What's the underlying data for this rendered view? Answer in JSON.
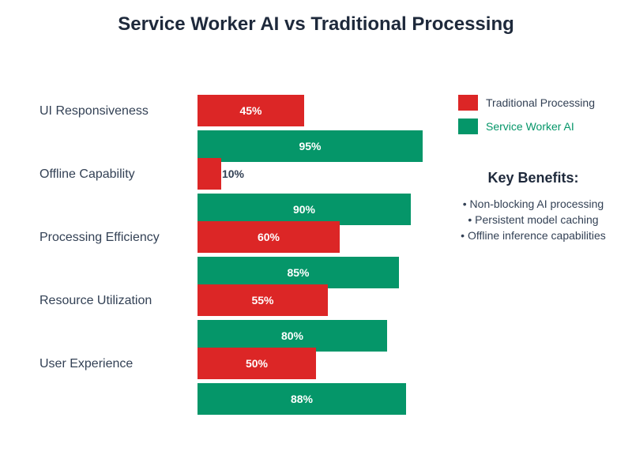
{
  "chart_data": {
    "type": "bar",
    "orientation": "horizontal",
    "title": "Service Worker AI vs Traditional Processing",
    "categories": [
      "UI Responsiveness",
      "Offline Capability",
      "Processing Efficiency",
      "Resource Utilization",
      "User Experience"
    ],
    "series": [
      {
        "name": "Traditional Processing",
        "color": "#dc2626",
        "values": [
          45,
          10,
          60,
          55,
          50
        ]
      },
      {
        "name": "Service Worker AI",
        "color": "#059669",
        "values": [
          95,
          90,
          85,
          80,
          88
        ]
      }
    ],
    "xlim": [
      0,
      100
    ],
    "value_suffix": "%",
    "legend_position": "top-right"
  },
  "benefits": {
    "title": "Key Benefits:",
    "items": [
      "• Non-blocking AI processing",
      "• Persistent model caching",
      "• Offline inference capabilities"
    ]
  }
}
